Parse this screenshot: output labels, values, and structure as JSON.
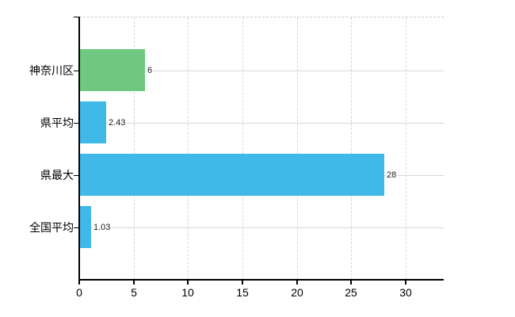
{
  "chart_data": {
    "type": "bar",
    "orientation": "horizontal",
    "title": "",
    "xlabel": "",
    "ylabel": "",
    "categories": [
      "神奈川区",
      "県平均",
      "県最大",
      "全国平均"
    ],
    "values": [
      6,
      2.43,
      28,
      1.03
    ],
    "value_labels": [
      "6",
      "2.43",
      "28",
      "1.03"
    ],
    "bar_colors": [
      "#6ec87f",
      "#40b8e8",
      "#40b8e8",
      "#40b8e8"
    ],
    "x_ticks": [
      "0",
      "5",
      "10",
      "15",
      "20",
      "25",
      "30"
    ],
    "x_tick_values": [
      0,
      5,
      10,
      15,
      20,
      25,
      30
    ],
    "xlim": [
      0,
      33.5
    ],
    "grid": true,
    "legend": "none"
  },
  "colors": {
    "background": "#ffffff",
    "axis": "#000000",
    "vertical_gridline": "#d9d3d9",
    "horizontal_leader_line": "#d2d9d2",
    "top_border": "#cfcacf",
    "bar_green": "#6ec87f",
    "bar_blue": "#40b8e8",
    "text": "#000000"
  }
}
